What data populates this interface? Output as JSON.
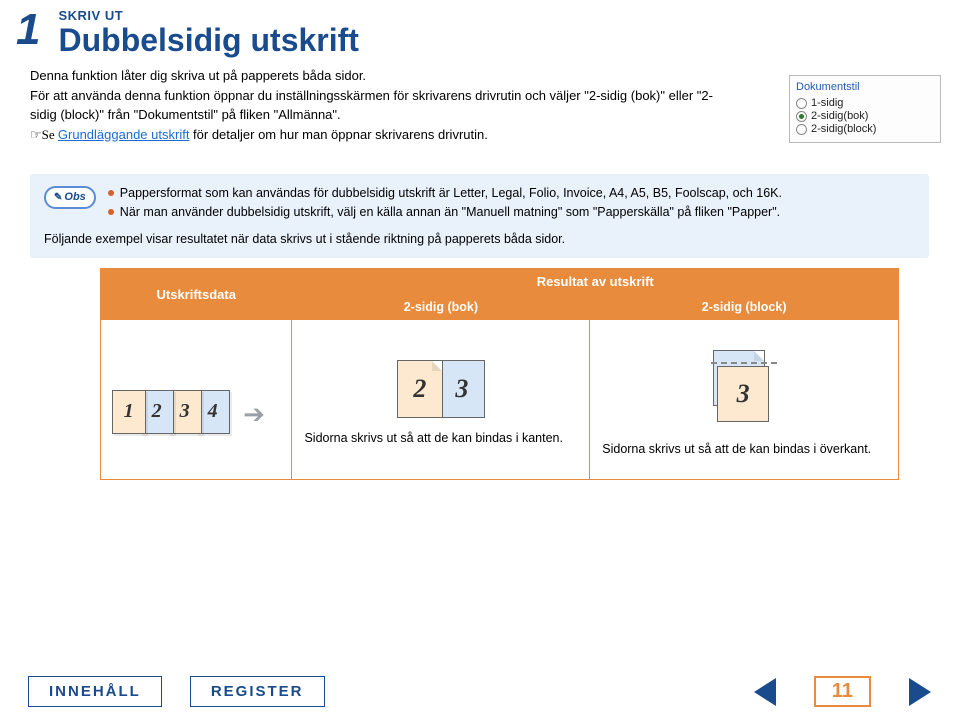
{
  "colors": {
    "brand_blue": "#1a4b8c",
    "link_blue": "#1a6dd6",
    "accent_orange": "#e88b3c",
    "note_bg": "#e9f1fb",
    "peach": "#fde9cf",
    "pale_blue": "#d6e6f7",
    "text": "#000000"
  },
  "header": {
    "page_number": "1",
    "kicker": "SKRIV UT",
    "title": "Dubbelsidig utskrift"
  },
  "intro": {
    "line1": "Denna funktion låter dig skriva ut på papperets båda sidor.",
    "line2": "För att använda denna funktion öppnar du inställningsskärmen för skrivarens drivrutin och väljer \"2-sidig (bok)\" eller \"2-sidig (block)\" från \"Dokumentstil\" på fliken \"Allmänna\".",
    "pointer": "☞Se ",
    "link_text": "Grundläggande utskrift",
    "line3_tail": " för detaljer om hur man öppnar skrivarens drivrutin."
  },
  "screenshot": {
    "title": "Dokumentstil",
    "options": [
      {
        "label": "1-sidig",
        "selected": false
      },
      {
        "label": "2-sidig(bok)",
        "selected": true
      },
      {
        "label": "2-sidig(block)",
        "selected": false
      }
    ]
  },
  "note": {
    "badge": "Obs",
    "bullet1": "Pappersformat som kan användas för dubbelsidig utskrift är Letter, Legal, Folio, Invoice, A4, A5, B5, Foolscap, och 16K.",
    "bullet2": "När man använder dubbelsidig utskrift, välj en källa annan än \"Manuell matning\" som \"Papperskälla\" på fliken \"Papper\".",
    "tail": "Följande exempel visar resultatet när data skrivs ut i stående riktning på papperets båda sidor."
  },
  "table": {
    "col_data": "Utskriftsdata",
    "col_result": "Resultat av utskrift",
    "sub_bok": "2-sidig (bok)",
    "sub_block": "2-sidig (block)",
    "pages": [
      "1",
      "2",
      "3",
      "4"
    ],
    "pair_front": "2",
    "pair_back": "3",
    "caption_bok": "Sidorna skrivs ut så att de kan bindas i kanten.",
    "caption_block": "Sidorna skrivs ut så att de kan bindas i överkant."
  },
  "footer": {
    "contents": "INNEHÅLL",
    "index": "REGISTER",
    "page": "11"
  }
}
